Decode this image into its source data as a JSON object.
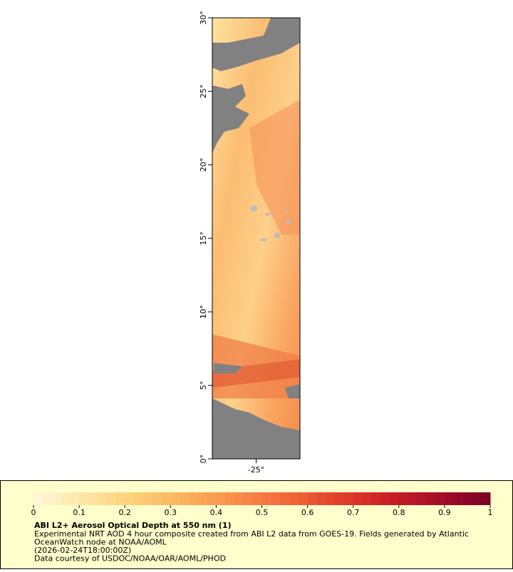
{
  "map": {
    "xlim": [
      -28,
      -22
    ],
    "ylim": [
      0,
      30
    ],
    "xticks": [
      {
        "value": -25,
        "label": "-25°"
      }
    ],
    "yticks": [
      {
        "value": 0,
        "label": "0°"
      },
      {
        "value": 5,
        "label": "5°"
      },
      {
        "value": 10,
        "label": "10°"
      },
      {
        "value": 15,
        "label": "15°"
      },
      {
        "value": 20,
        "label": "20°"
      },
      {
        "value": 25,
        "label": "25°"
      },
      {
        "value": 30,
        "label": "30°"
      }
    ],
    "colorbar": {
      "clim": [
        0,
        1
      ],
      "ticks": [
        0,
        0.1,
        0.2,
        0.3,
        0.4,
        0.5,
        0.6,
        0.7,
        0.8,
        0.9,
        1
      ],
      "colormap": [
        "#fff7dc",
        "#fee6a6",
        "#fdcf76",
        "#fcb05c",
        "#f98e49",
        "#f2683a",
        "#e2412c",
        "#cb1e24",
        "#a50d2a",
        "#7a0026"
      ]
    },
    "legend": {
      "title": "ABI L2+ Aerosol Optical Depth at 550 nm (1)",
      "lines": [
        "Experimental NRT AOD 4 hour composite created from ABI L2 data from GOES-19. Fields generated by Atlantic",
        "OceanWatch node at NOAA/AOML",
        "(2026-02-24T18:00:00Z)",
        "Data courtesy of USDOC/NOAA/OAR/AOML/PHOD"
      ]
    }
  }
}
